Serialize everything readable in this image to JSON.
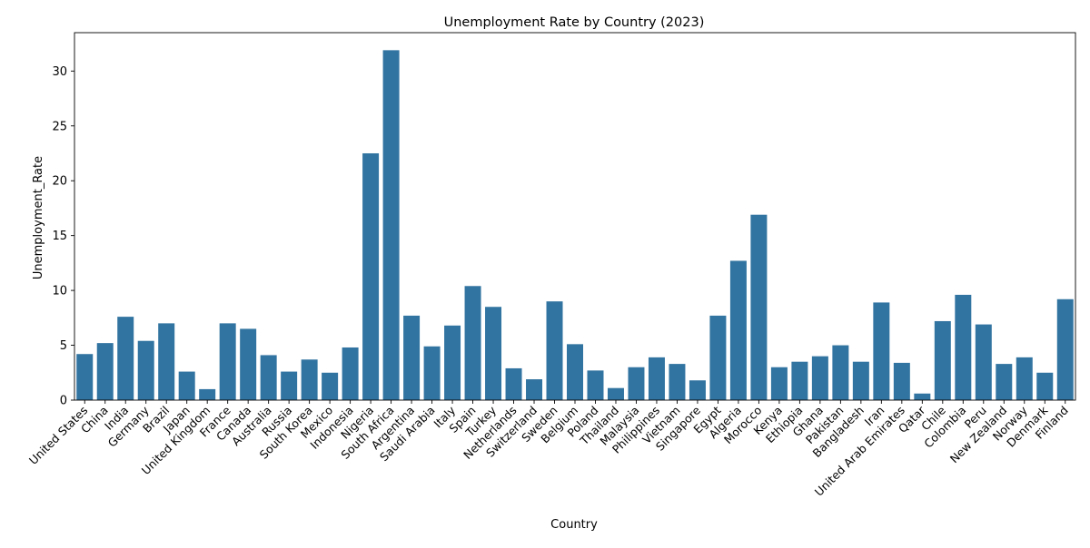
{
  "chart_data": {
    "type": "bar",
    "title": "Unemployment Rate by Country (2023)",
    "xlabel": "Country",
    "ylabel": "Unemployment_Rate",
    "ylim": [
      0,
      33.5
    ],
    "yticks": [
      "0",
      "5",
      "10",
      "15",
      "20",
      "25",
      "30"
    ],
    "grid": false,
    "bar_color": "#3274a1",
    "categories": [
      "United States",
      "China",
      "India",
      "Germany",
      "Brazil",
      "Japan",
      "United Kingdom",
      "France",
      "Canada",
      "Australia",
      "Russia",
      "South Korea",
      "Mexico",
      "Indonesia",
      "Nigeria",
      "South Africa",
      "Argentina",
      "Saudi Arabia",
      "Italy",
      "Spain",
      "Turkey",
      "Netherlands",
      "Switzerland",
      "Sweden",
      "Belgium",
      "Poland",
      "Thailand",
      "Malaysia",
      "Philippines",
      "Vietnam",
      "Singapore",
      "Egypt",
      "Algeria",
      "Morocco",
      "Kenya",
      "Ethiopia",
      "Ghana",
      "Pakistan",
      "Bangladesh",
      "Iran",
      "United Arab Emirates",
      "Qatar",
      "Chile",
      "Colombia",
      "Peru",
      "New Zealand",
      "Norway",
      "Denmark",
      "Finland"
    ],
    "values": [
      4.2,
      5.2,
      7.6,
      5.4,
      7.0,
      2.6,
      1.0,
      7.0,
      6.5,
      4.1,
      2.6,
      3.7,
      2.5,
      4.8,
      22.5,
      31.9,
      7.7,
      4.9,
      6.8,
      10.4,
      8.5,
      2.9,
      1.9,
      9.0,
      5.1,
      2.7,
      1.1,
      3.0,
      3.9,
      3.3,
      1.8,
      7.7,
      12.7,
      16.9,
      3.0,
      3.5,
      4.0,
      5.0,
      3.5,
      8.9,
      3.4,
      0.6,
      7.2,
      9.6,
      6.9,
      3.3,
      3.9,
      2.5,
      9.2
    ]
  }
}
